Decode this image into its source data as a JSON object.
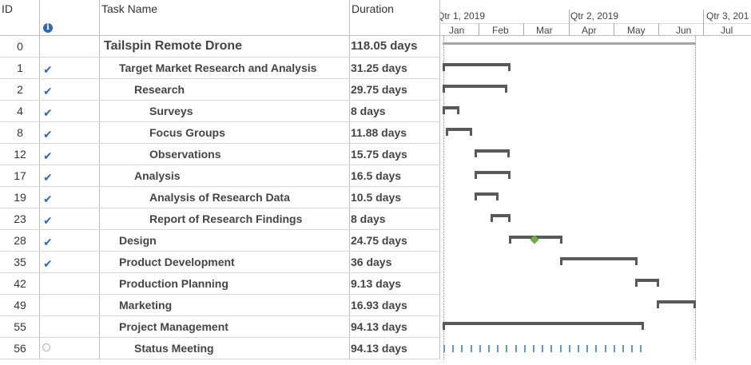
{
  "table": {
    "headers": {
      "id": "ID",
      "indicator": "i",
      "task_name": "Task Name",
      "duration": "Duration"
    },
    "rows": [
      {
        "id": "0",
        "indent": 0,
        "name": "Tailspin Remote Drone",
        "duration": "118.05 days",
        "status": "",
        "summary": true
      },
      {
        "id": "1",
        "indent": 1,
        "name": "Target Market Research and Analysis",
        "duration": "31.25 days",
        "status": "complete"
      },
      {
        "id": "2",
        "indent": 2,
        "name": "Research",
        "duration": "29.75 days",
        "status": "complete"
      },
      {
        "id": "4",
        "indent": 3,
        "name": "Surveys",
        "duration": "8 days",
        "status": "complete"
      },
      {
        "id": "8",
        "indent": 3,
        "name": "Focus Groups",
        "duration": "11.88 days",
        "status": "complete"
      },
      {
        "id": "12",
        "indent": 3,
        "name": "Observations",
        "duration": "15.75 days",
        "status": "complete"
      },
      {
        "id": "17",
        "indent": 2,
        "name": "Analysis",
        "duration": "16.5 days",
        "status": "complete"
      },
      {
        "id": "19",
        "indent": 3,
        "name": "Analysis of Research Data",
        "duration": "10.5 days",
        "status": "complete"
      },
      {
        "id": "23",
        "indent": 3,
        "name": "Report of Research Findings",
        "duration": "8 days",
        "status": "complete"
      },
      {
        "id": "28",
        "indent": 1,
        "name": "Design",
        "duration": "24.75 days",
        "status": "complete"
      },
      {
        "id": "35",
        "indent": 1,
        "name": "Product Development",
        "duration": "36 days",
        "status": "complete"
      },
      {
        "id": "42",
        "indent": 1,
        "name": "Production Planning",
        "duration": "9.13 days",
        "status": ""
      },
      {
        "id": "49",
        "indent": 1,
        "name": "Marketing",
        "duration": "16.93 days",
        "status": ""
      },
      {
        "id": "55",
        "indent": 1,
        "name": "Project Management",
        "duration": "94.13 days",
        "status": ""
      },
      {
        "id": "56",
        "indent": 2,
        "name": "Status Meeting",
        "duration": "94.13 days",
        "status": "recurring"
      }
    ]
  },
  "timeline": {
    "quarters": [
      "Qtr 1, 2019",
      "Qtr 2, 2019",
      "Qtr 3, 201"
    ],
    "months": [
      "Jan",
      "Feb",
      "Mar",
      "Apr",
      "May",
      "Jun",
      "Jul"
    ]
  },
  "colors": {
    "bar": "#595959",
    "milestone": "#70ad47",
    "check": "#2e6ab3",
    "recurring": "#5b9bd5"
  }
}
